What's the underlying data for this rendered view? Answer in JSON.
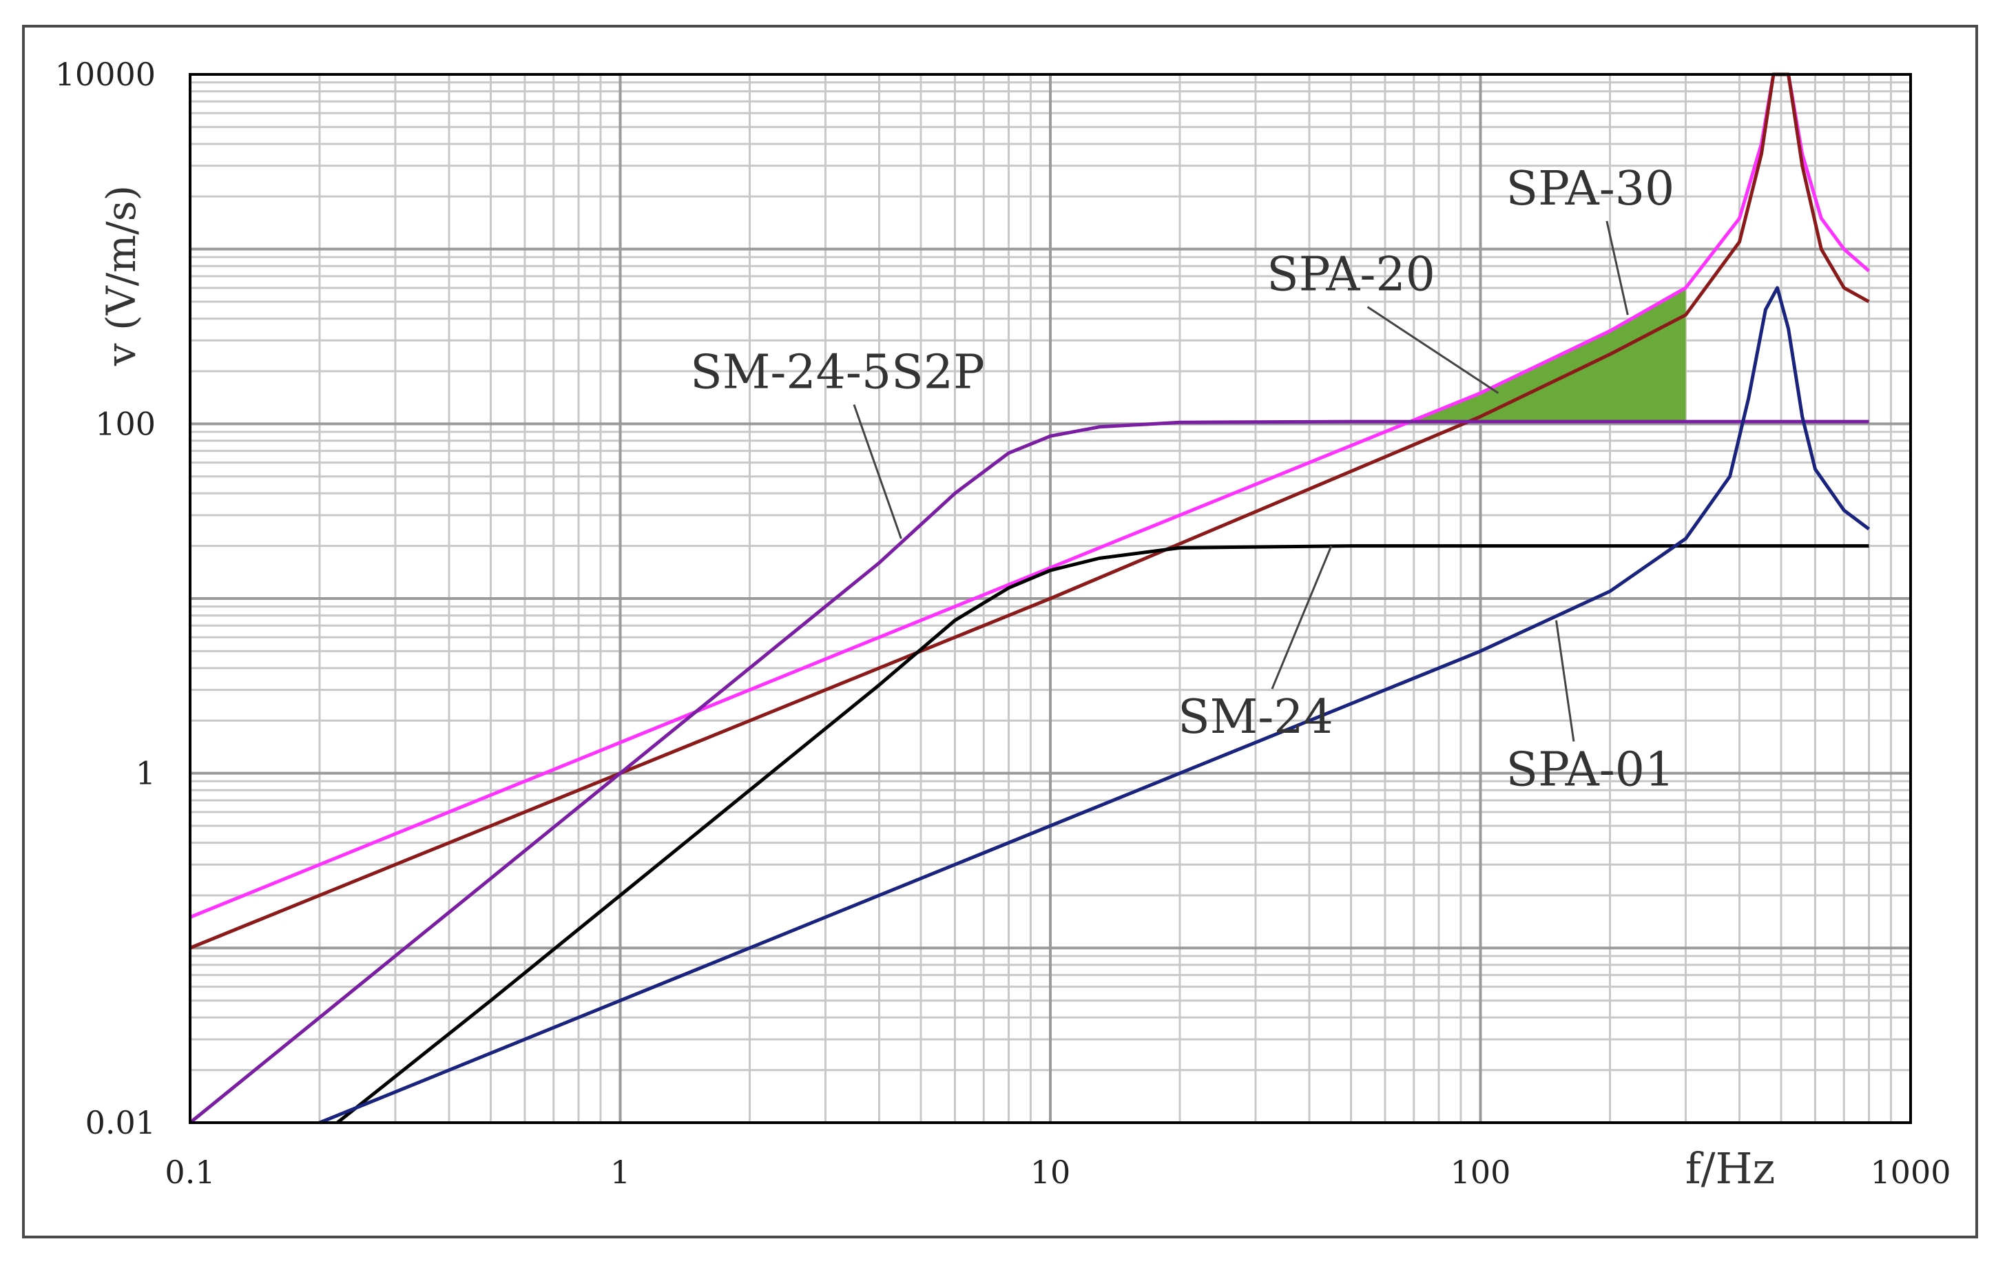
{
  "chart_data": {
    "type": "line",
    "xscale": "log",
    "yscale": "log",
    "xlim": [
      0.1,
      1000
    ],
    "ylim": [
      0.01,
      10000
    ],
    "grid": true,
    "xlabel": "f/Hz",
    "ylabel": "v (V/m/s)",
    "xticks": [
      {
        "value": 0.1,
        "label": "0.1"
      },
      {
        "value": 1,
        "label": "1"
      },
      {
        "value": 10,
        "label": "10"
      },
      {
        "value": 100,
        "label": "100"
      },
      {
        "value": 1000,
        "label": "1000"
      }
    ],
    "yticks": [
      {
        "value": 0.01,
        "label": "0.01"
      },
      {
        "value": 1,
        "label": "1"
      },
      {
        "value": 100,
        "label": "100"
      },
      {
        "value": 10000,
        "label": "10000"
      }
    ],
    "series": [
      {
        "name": "SPA-30",
        "color": "#ff33ff",
        "x": [
          0.1,
          1,
          10,
          100,
          200,
          300,
          400,
          450,
          480,
          520,
          560,
          620,
          700,
          800
        ],
        "y": [
          0.15,
          1.5,
          15,
          150,
          340,
          600,
          1500,
          4000,
          12000,
          12000,
          3500,
          1500,
          1000,
          750
        ]
      },
      {
        "name": "SPA-20",
        "color": "#8b1a1a",
        "x": [
          0.1,
          1,
          10,
          100,
          200,
          300,
          400,
          450,
          480,
          520,
          560,
          620,
          700,
          800
        ],
        "y": [
          0.1,
          1,
          10,
          110,
          250,
          420,
          1100,
          3500,
          12000,
          12000,
          3000,
          1000,
          600,
          500
        ]
      },
      {
        "name": "SM-24-5S2P",
        "color": "#7b1fa2",
        "x": [
          0.1,
          0.5,
          1,
          2,
          4,
          6,
          8,
          10,
          13,
          20,
          50,
          100,
          300,
          800
        ],
        "y": [
          0.01,
          0.25,
          1,
          4,
          16,
          40,
          68,
          85,
          96,
          102,
          103,
          103,
          103,
          103
        ]
      },
      {
        "name": "SM-24",
        "color": "#000000",
        "x": [
          0.22,
          0.5,
          1,
          2,
          4,
          6,
          8,
          10,
          13,
          20,
          50,
          100,
          300,
          800
        ],
        "y": [
          0.01,
          0.05,
          0.2,
          0.8,
          3.2,
          7.5,
          11.5,
          14.5,
          17,
          19.5,
          20,
          20,
          20,
          20
        ]
      },
      {
        "name": "SPA-01",
        "color": "#1a237e",
        "x": [
          0.2,
          1,
          10,
          100,
          200,
          300,
          380,
          420,
          460,
          490,
          520,
          560,
          600,
          700,
          800
        ],
        "y": [
          0.01,
          0.05,
          0.5,
          5,
          11,
          22,
          50,
          140,
          450,
          600,
          350,
          110,
          55,
          32,
          25
        ]
      }
    ],
    "annotations": [
      {
        "text": "SPA-30",
        "x": 180,
        "y": 1800,
        "pointer_to": {
          "x": 220,
          "y": 420
        }
      },
      {
        "text": "SPA-20",
        "x": 50,
        "y": 580,
        "pointer_to": {
          "x": 110,
          "y": 150
        }
      },
      {
        "text": "SM-24-5S2P",
        "x": 3.2,
        "y": 160,
        "pointer_to": {
          "x": 4.5,
          "y": 22
        }
      },
      {
        "text": "SM-24",
        "x": 30,
        "y": 1.7,
        "pointer_to": {
          "x": 45,
          "y": 20
        }
      },
      {
        "text": "SPA-01",
        "x": 180,
        "y": 0.85,
        "pointer_to": {
          "x": 150,
          "y": 7.5
        }
      }
    ],
    "shaded_region": {
      "color": "#6aaa3a",
      "upper_series": "SPA-30",
      "lower_value": 103,
      "x_from": 70,
      "x_to": 300
    }
  }
}
